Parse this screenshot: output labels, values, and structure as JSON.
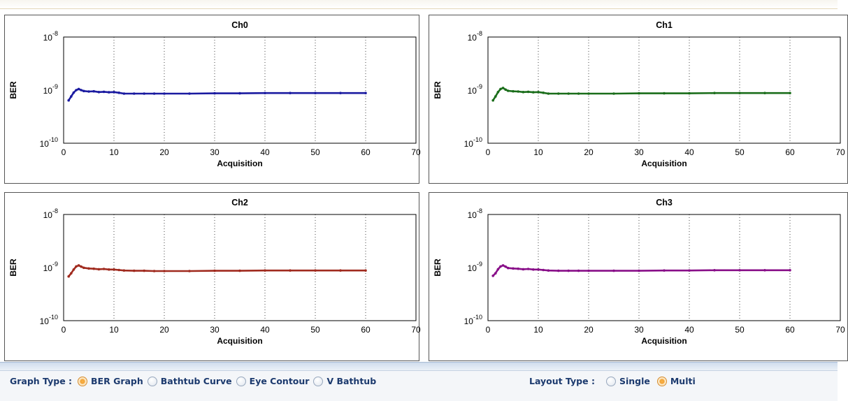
{
  "chart_data": [
    {
      "type": "line",
      "title": "Ch0",
      "xlabel": "Acquisition",
      "ylabel": "BER",
      "color": "#1a1aa0",
      "xlim": [
        0,
        70
      ],
      "xticks": [
        "0",
        "10",
        "20",
        "30",
        "40",
        "50",
        "60",
        "70"
      ],
      "y_scale": "log",
      "ylim": [
        1e-10,
        1e-08
      ],
      "yticks": [
        {
          "base": "10",
          "exp": "-8"
        },
        {
          "base": "10",
          "exp": "-9"
        },
        {
          "base": "10",
          "exp": "-10"
        }
      ],
      "grid": "x-dotted",
      "series": [
        {
          "x": [
            1,
            1.5,
            2,
            2.5,
            3,
            3.5,
            4,
            5,
            6,
            7,
            8,
            9,
            10,
            11,
            12,
            14,
            16,
            18,
            20,
            25,
            30,
            35,
            40,
            45,
            50,
            55,
            60
          ],
          "y": [
            6.4e-10,
            7.6e-10,
            9e-10,
            1e-09,
            1.05e-09,
            1e-09,
            9.6e-10,
            9.4e-10,
            9.5e-10,
            9.2e-10,
            9.3e-10,
            9.1e-10,
            9.2e-10,
            8.9e-10,
            8.6e-10,
            8.6e-10,
            8.6e-10,
            8.6e-10,
            8.6e-10,
            8.6e-10,
            8.7e-10,
            8.7e-10,
            8.8e-10,
            8.8e-10,
            8.8e-10,
            8.8e-10,
            8.8e-10
          ]
        }
      ]
    },
    {
      "type": "line",
      "title": "Ch1",
      "xlabel": "Acquisition",
      "ylabel": "BER",
      "color": "#1a6d1a",
      "xlim": [
        0,
        70
      ],
      "xticks": [
        "0",
        "10",
        "20",
        "30",
        "40",
        "50",
        "60",
        "70"
      ],
      "y_scale": "log",
      "ylim": [
        1e-10,
        1e-08
      ],
      "yticks": [
        {
          "base": "10",
          "exp": "-8"
        },
        {
          "base": "10",
          "exp": "-9"
        },
        {
          "base": "10",
          "exp": "-10"
        }
      ],
      "grid": "x-dotted",
      "series": [
        {
          "x": [
            1,
            1.5,
            2,
            2.5,
            3,
            3.5,
            4,
            5,
            6,
            7,
            8,
            9,
            10,
            11,
            12,
            14,
            16,
            18,
            20,
            25,
            30,
            35,
            40,
            45,
            50,
            55,
            60
          ],
          "y": [
            6.4e-10,
            7.6e-10,
            9.2e-10,
            1.05e-09,
            1.1e-09,
            1.02e-09,
            9.7e-10,
            9.5e-10,
            9.4e-10,
            9.2e-10,
            9.3e-10,
            9.1e-10,
            9.2e-10,
            8.9e-10,
            8.6e-10,
            8.6e-10,
            8.6e-10,
            8.6e-10,
            8.6e-10,
            8.6e-10,
            8.7e-10,
            8.7e-10,
            8.7e-10,
            8.8e-10,
            8.8e-10,
            8.8e-10,
            8.8e-10
          ]
        }
      ]
    },
    {
      "type": "line",
      "title": "Ch2",
      "xlabel": "Acquisition",
      "ylabel": "BER",
      "color": "#a02a1e",
      "xlim": [
        0,
        70
      ],
      "xticks": [
        "0",
        "10",
        "20",
        "30",
        "40",
        "50",
        "60",
        "70"
      ],
      "y_scale": "log",
      "ylim": [
        1e-10,
        1e-08
      ],
      "yticks": [
        {
          "base": "10",
          "exp": "-8"
        },
        {
          "base": "10",
          "exp": "-9"
        },
        {
          "base": "10",
          "exp": "-10"
        }
      ],
      "grid": "x-dotted",
      "series": [
        {
          "x": [
            1,
            1.5,
            2,
            2.5,
            3,
            3.5,
            4,
            5,
            6,
            7,
            8,
            9,
            10,
            11,
            12,
            14,
            16,
            18,
            20,
            25,
            30,
            35,
            40,
            45,
            50,
            55,
            60
          ],
          "y": [
            6.8e-10,
            7.8e-10,
            9.2e-10,
            1.05e-09,
            1.1e-09,
            1.04e-09,
            9.9e-10,
            9.6e-10,
            9.5e-10,
            9.3e-10,
            9.4e-10,
            9.2e-10,
            9.2e-10,
            9e-10,
            8.8e-10,
            8.7e-10,
            8.7e-10,
            8.6e-10,
            8.6e-10,
            8.6e-10,
            8.7e-10,
            8.7e-10,
            8.8e-10,
            8.8e-10,
            8.8e-10,
            8.8e-10,
            8.8e-10
          ]
        }
      ]
    },
    {
      "type": "line",
      "title": "Ch3",
      "xlabel": "Acquisition",
      "ylabel": "BER",
      "color": "#880e88",
      "xlim": [
        0,
        70
      ],
      "xticks": [
        "0",
        "10",
        "20",
        "30",
        "40",
        "50",
        "60",
        "70"
      ],
      "y_scale": "log",
      "ylim": [
        1e-10,
        1e-08
      ],
      "yticks": [
        {
          "base": "10",
          "exp": "-8"
        },
        {
          "base": "10",
          "exp": "-9"
        },
        {
          "base": "10",
          "exp": "-10"
        }
      ],
      "grid": "x-dotted",
      "series": [
        {
          "x": [
            1,
            1.5,
            2,
            2.5,
            3,
            3.5,
            4,
            5,
            6,
            7,
            8,
            9,
            10,
            11,
            12,
            14,
            16,
            18,
            20,
            25,
            30,
            35,
            40,
            45,
            50,
            55,
            60
          ],
          "y": [
            7e-10,
            7.8e-10,
            9.3e-10,
            1.05e-09,
            1.1e-09,
            1.04e-09,
            9.8e-10,
            9.6e-10,
            9.5e-10,
            9.3e-10,
            9.4e-10,
            9.2e-10,
            9.2e-10,
            9e-10,
            8.8e-10,
            8.7e-10,
            8.7e-10,
            8.7e-10,
            8.7e-10,
            8.7e-10,
            8.7e-10,
            8.8e-10,
            8.8e-10,
            8.9e-10,
            8.9e-10,
            8.9e-10,
            8.9e-10
          ]
        }
      ]
    }
  ],
  "controls": {
    "graph_type": {
      "label": "Graph Type :",
      "options": [
        {
          "label": "BER Graph",
          "selected": true
        },
        {
          "label": "Bathtub Curve",
          "selected": false
        },
        {
          "label": "Eye Contour",
          "selected": false
        },
        {
          "label": "V Bathtub",
          "selected": false
        }
      ]
    },
    "layout_type": {
      "label": "Layout Type :",
      "options": [
        {
          "label": "Single",
          "selected": false
        },
        {
          "label": "Multi",
          "selected": true
        }
      ]
    }
  }
}
